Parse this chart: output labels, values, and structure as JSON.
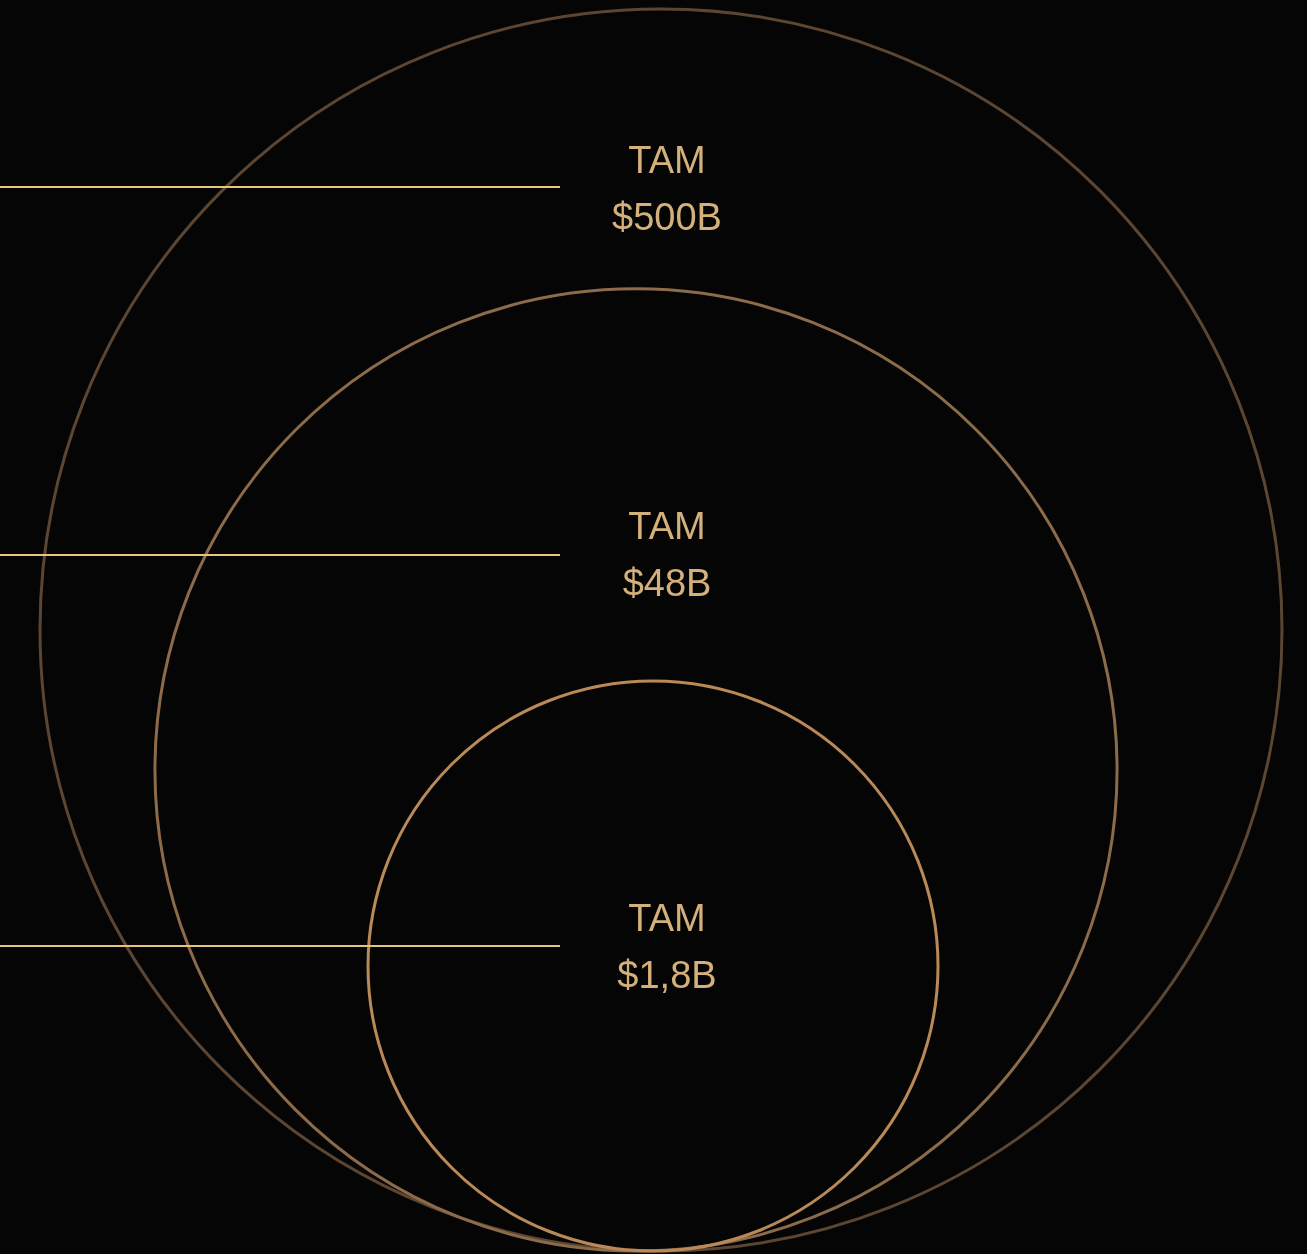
{
  "chart_data": {
    "type": "other",
    "categories": [
      "TAM",
      "TAM",
      "TAM"
    ],
    "values": [
      500,
      48,
      1.8
    ],
    "value_labels": [
      "$500B",
      "$48B",
      "$1,8B"
    ],
    "colors": [
      "#5c4632",
      "#8c6b4a",
      "#b98a58"
    ]
  }
}
